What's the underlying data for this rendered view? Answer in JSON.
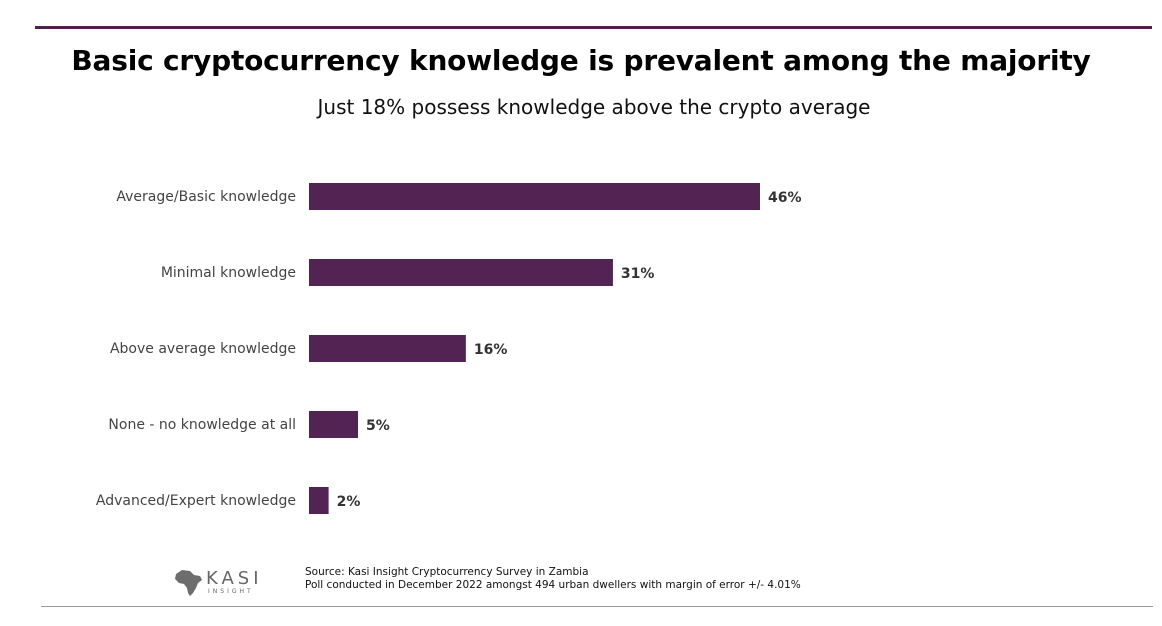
{
  "title": "Basic cryptocurrency knowledge is prevalent among the majority",
  "subtitle": "Just 18% possess knowledge above the crypto average",
  "colors": {
    "accent": "#4f1f4d",
    "bar": "#532353"
  },
  "chart_data": {
    "type": "bar",
    "orientation": "horizontal",
    "title": "Basic cryptocurrency knowledge is prevalent among the majority",
    "subtitle": "Just 18% possess knowledge above the crypto average",
    "categories": [
      "Average/Basic knowledge",
      "Minimal knowledge",
      "Above average knowledge",
      "None - no knowledge at all",
      "Advanced/Expert knowledge"
    ],
    "values": [
      46,
      31,
      16,
      5,
      2
    ],
    "value_labels": [
      "46%",
      "31%",
      "16%",
      "5%",
      "2%"
    ],
    "unit": "%",
    "xlim": [
      0,
      100
    ],
    "grid": false,
    "legend": "none"
  },
  "footer": {
    "source": "Source: Kasi Insight Cryptocurrency Survey in Zambia",
    "note": "Poll conducted in December 2022 amongst 494 urban dwellers with margin of error +/- 4.01%"
  },
  "logo": {
    "name": "KASI",
    "sub": "INSIGHT",
    "icon": "africa-map-icon"
  }
}
